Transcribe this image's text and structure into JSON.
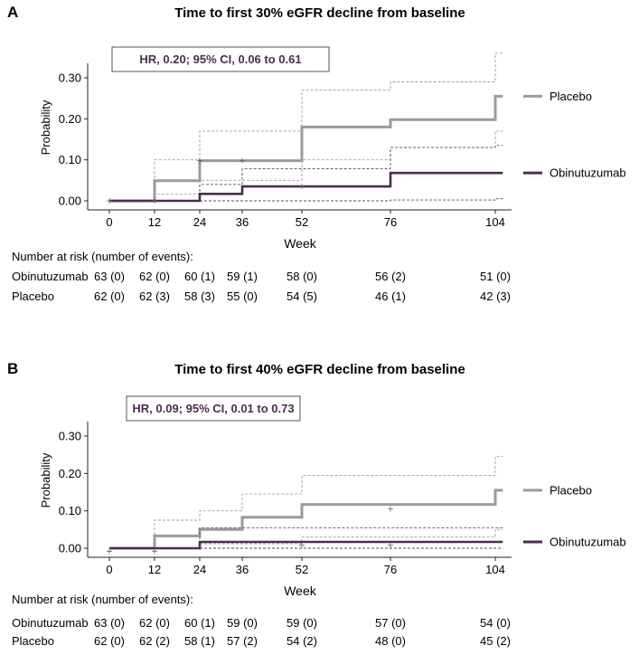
{
  "panels": [
    {
      "letter": "A",
      "risk_title": "Number at risk (number of events):",
      "risk_rows": [
        {
          "label": "Obinutuzumab",
          "cells": [
            "63 (0)",
            "62 (0)",
            "60 (1)",
            "59 (1)",
            "58 (0)",
            "56 (2)",
            "51 (0)"
          ]
        },
        {
          "label": "Placebo",
          "cells": [
            "62 (0)",
            "62 (3)",
            "58 (3)",
            "55 (0)",
            "54 (5)",
            "46 (1)",
            "42 (3)"
          ]
        }
      ]
    },
    {
      "letter": "B",
      "risk_title": "Number at risk (number of events):",
      "risk_rows": [
        {
          "label": "Obinutuzumab",
          "cells": [
            "63 (0)",
            "62 (0)",
            "60 (1)",
            "59 (0)",
            "59 (0)",
            "57 (0)",
            "54 (0)"
          ]
        },
        {
          "label": "Placebo",
          "cells": [
            "62 (0)",
            "62 (2)",
            "58 (1)",
            "57 (2)",
            "54 (2)",
            "48 (0)",
            "45 (2)"
          ]
        }
      ]
    }
  ],
  "chart_data": [
    {
      "type": "line",
      "subtype": "kaplan-meier step",
      "title": "Time to first 30% eGFR decline from baseline",
      "annotation": "HR, 0.20; 95% CI, 0.06 to 0.61",
      "xlabel": "Week",
      "ylabel": "Probability",
      "xticks": [
        0,
        12,
        24,
        36,
        52,
        76,
        104
      ],
      "yticks": [
        0.0,
        0.1,
        0.2,
        0.3
      ],
      "ytick_labels": [
        "0.00",
        "0.10",
        "0.20",
        "0.30"
      ],
      "xlim": [
        -4,
        106
      ],
      "ylim": [
        -0.015,
        0.37
      ],
      "series": [
        {
          "name": "Placebo",
          "color": "#9b9b9b",
          "end_label": "Placebo",
          "x": [
            0,
            12,
            24,
            52,
            76,
            104,
            106
          ],
          "y": [
            0.0,
            0.049,
            0.098,
            0.18,
            0.198,
            0.255,
            0.255
          ],
          "ci_upper": {
            "x": [
              0,
              12,
              24,
              52,
              76,
              104,
              106
            ],
            "y": [
              0.0,
              0.1,
              0.17,
              0.27,
              0.29,
              0.36,
              0.36
            ]
          },
          "ci_lower": {
            "x": [
              0,
              12,
              24,
              52,
              76,
              104,
              106
            ],
            "y": [
              0.0,
              0.016,
              0.05,
              0.1,
              0.13,
              0.17,
              0.17
            ]
          },
          "censor": {
            "x": [
              24,
              36
            ],
            "y": [
              0.098,
              0.098
            ]
          }
        },
        {
          "name": "Obinutuzumab",
          "color": "#4b2d4f",
          "end_label": "Obinutuzumab",
          "x": [
            0,
            24,
            36,
            76,
            106
          ],
          "y": [
            0.0,
            0.017,
            0.035,
            0.068,
            0.068
          ],
          "ci_upper": {
            "x": [
              0,
              24,
              36,
              76,
              104,
              106
            ],
            "y": [
              0.0,
              0.04,
              0.078,
              0.13,
              0.135,
              0.135
            ]
          },
          "ci_lower": {
            "x": [
              0,
              76,
              104,
              106
            ],
            "y": [
              0.0,
              0.002,
              0.005,
              0.005
            ]
          },
          "censor": {
            "x": [
              0,
              12,
              52
            ],
            "y": [
              0.0,
              0.0,
              0.035
            ]
          }
        }
      ]
    },
    {
      "type": "line",
      "subtype": "kaplan-meier step",
      "title": "Time to first 40% eGFR decline from baseline",
      "annotation": "HR, 0.09; 95% CI, 0.01 to 0.73",
      "xlabel": "Week",
      "ylabel": "Probability",
      "xticks": [
        0,
        12,
        24,
        36,
        52,
        76,
        104
      ],
      "yticks": [
        0.0,
        0.1,
        0.2,
        0.3
      ],
      "ytick_labels": [
        "0.00",
        "0.10",
        "0.20",
        "0.30"
      ],
      "xlim": [
        -4,
        106
      ],
      "ylim": [
        -0.015,
        0.37
      ],
      "series": [
        {
          "name": "Placebo",
          "color": "#9b9b9b",
          "end_label": "Placebo",
          "x": [
            0,
            12,
            24,
            36,
            52,
            104,
            106
          ],
          "y": [
            0.0,
            0.033,
            0.05,
            0.083,
            0.117,
            0.155,
            0.155
          ],
          "ci_upper": {
            "x": [
              0,
              12,
              24,
              36,
              52,
              104,
              106
            ],
            "y": [
              0.0,
              0.075,
              0.1,
              0.145,
              0.195,
              0.245,
              0.245
            ]
          },
          "ci_lower": {
            "x": [
              0,
              24,
              52,
              104,
              106
            ],
            "y": [
              0.0,
              0.012,
              0.03,
              0.05,
              0.05
            ]
          },
          "censor": {
            "x": [
              76
            ],
            "y": [
              0.105
            ]
          }
        },
        {
          "name": "Obinutuzumab",
          "color": "#4b2d4f",
          "end_label": "Obinutuzumab",
          "x": [
            0,
            24,
            106
          ],
          "y": [
            0.0,
            0.017,
            0.017
          ],
          "ci_upper": {
            "x": [
              0,
              24,
              104,
              106
            ],
            "y": [
              0.0,
              0.055,
              0.055,
              0.055
            ]
          },
          "ci_lower": {
            "x": [
              0,
              106
            ],
            "y": [
              0.0,
              0.0
            ]
          },
          "censor": {
            "x": [
              0,
              12,
              52,
              76
            ],
            "y": [
              -0.008,
              -0.008,
              0.008,
              0.008
            ]
          }
        }
      ]
    }
  ]
}
